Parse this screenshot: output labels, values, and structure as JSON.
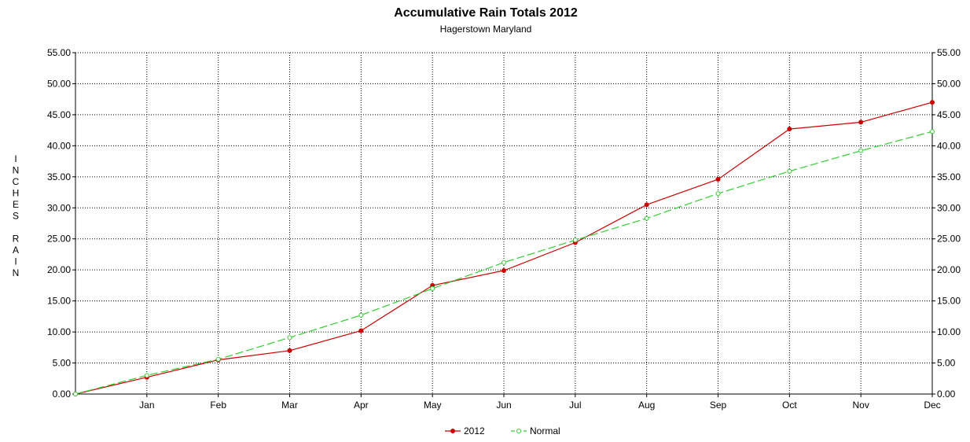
{
  "chart_data": {
    "type": "line",
    "title": "Accumulative Rain Totals 2012",
    "subtitle": "Hagerstown Maryland",
    "ylabel": "INCHES RAIN",
    "xlabel": "",
    "categories": [
      "",
      "Jan",
      "Feb",
      "Mar",
      "Apr",
      "May",
      "Jun",
      "Jul",
      "Aug",
      "Sep",
      "Oct",
      "Nov",
      "Dec"
    ],
    "ylim": [
      0,
      55
    ],
    "yticks": [
      "0.00",
      "5.00",
      "10.00",
      "15.00",
      "20.00",
      "25.00",
      "30.00",
      "35.00",
      "40.00",
      "45.00",
      "50.00",
      "55.00"
    ],
    "grid": true,
    "legend_position": "bottom",
    "series": [
      {
        "name": "2012",
        "color": "#cc0000",
        "line_style": "solid",
        "values": [
          0.0,
          2.7,
          5.5,
          7.0,
          10.2,
          17.5,
          19.9,
          24.4,
          30.5,
          34.6,
          42.7,
          43.8,
          47.0
        ]
      },
      {
        "name": "Normal",
        "color": "#33cc33",
        "line_style": "dashed",
        "values": [
          0.0,
          3.0,
          5.6,
          9.1,
          12.7,
          17.0,
          21.2,
          24.8,
          28.3,
          32.3,
          35.9,
          39.2,
          42.3
        ]
      }
    ]
  }
}
